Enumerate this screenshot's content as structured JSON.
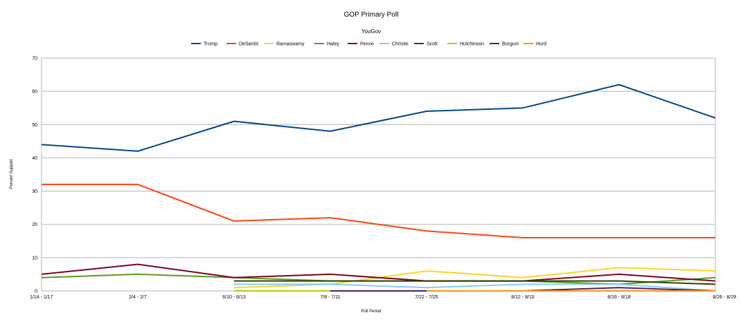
{
  "chart_data": {
    "type": "line",
    "title": "GOP Primary Poll",
    "subtitle": "YouGov",
    "xlabel": "Poll Period",
    "ylabel": "Percent Support",
    "ylim": [
      0,
      70
    ],
    "yticks": [
      0,
      10,
      20,
      30,
      40,
      50,
      60,
      70
    ],
    "grid": "horizontal",
    "legend_position": "top",
    "categories": [
      "1/14 - 1/17",
      "2/4 - 2/7",
      "6/10 - 6/13",
      "7/8 - 7/11",
      "7/22 - 7/25",
      "8/12 - 8/15",
      "8/16 - 8/18",
      "8/26 - 8/29"
    ],
    "series": [
      {
        "name": "Trump",
        "color": "#004586",
        "values": [
          44,
          42,
          51,
          48,
          54,
          55,
          62,
          52
        ]
      },
      {
        "name": "DeSantis",
        "color": "#ff420e",
        "values": [
          32,
          32,
          21,
          22,
          18,
          16,
          16,
          16
        ]
      },
      {
        "name": "Ramaswamy",
        "color": "#ffd320",
        "values": [
          null,
          null,
          1,
          2,
          6,
          4,
          7,
          6
        ]
      },
      {
        "name": "Haley",
        "color": "#579d1c",
        "values": [
          4,
          5,
          4,
          3,
          3,
          3,
          2,
          4
        ]
      },
      {
        "name": "Pence",
        "color": "#7e0021",
        "values": [
          5,
          8,
          4,
          5,
          3,
          3,
          5,
          3
        ]
      },
      {
        "name": "Christie",
        "color": "#83caff",
        "values": [
          null,
          null,
          2,
          2,
          1,
          2,
          2,
          0
        ]
      },
      {
        "name": "Scott",
        "color": "#314004",
        "values": [
          null,
          null,
          3,
          3,
          3,
          3,
          3,
          2
        ]
      },
      {
        "name": "Hutchinson",
        "color": "#aecf00",
        "values": [
          null,
          null,
          0,
          0,
          0,
          0,
          0,
          0
        ]
      },
      {
        "name": "Burgum",
        "color": "#4b1f6f",
        "values": [
          null,
          null,
          null,
          0,
          0,
          0,
          1,
          0
        ]
      },
      {
        "name": "Hurd",
        "color": "#ff950e",
        "values": [
          null,
          null,
          null,
          null,
          0,
          0,
          0,
          0
        ]
      }
    ]
  }
}
